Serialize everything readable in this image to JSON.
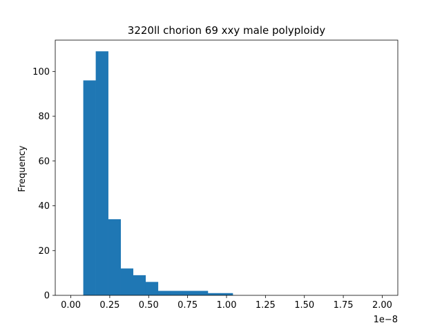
{
  "chart_data": {
    "type": "bar",
    "title": "3220ll chorion 69 xxy male polyploidy",
    "xlabel": "",
    "ylabel": "Frequency",
    "x_offset_label": "1e−8",
    "xlim": [
      -0.1,
      2.1
    ],
    "ylim": [
      0,
      114
    ],
    "bar_color": "#1f77b4",
    "x_ticks": [
      0.0,
      0.25,
      0.5,
      0.75,
      1.0,
      1.25,
      1.5,
      1.75,
      2.0
    ],
    "x_tick_labels": [
      "0.00",
      "0.25",
      "0.50",
      "0.75",
      "1.00",
      "1.25",
      "1.50",
      "1.75",
      "2.00"
    ],
    "y_ticks": [
      0,
      20,
      40,
      60,
      80,
      100
    ],
    "y_tick_labels": [
      "0",
      "20",
      "40",
      "60",
      "80",
      "100"
    ],
    "bins": [
      {
        "x0": 0.08,
        "x1": 0.16,
        "count": 96
      },
      {
        "x0": 0.16,
        "x1": 0.24,
        "count": 109
      },
      {
        "x0": 0.24,
        "x1": 0.32,
        "count": 34
      },
      {
        "x0": 0.32,
        "x1": 0.4,
        "count": 12
      },
      {
        "x0": 0.4,
        "x1": 0.48,
        "count": 9
      },
      {
        "x0": 0.48,
        "x1": 0.56,
        "count": 6
      },
      {
        "x0": 0.56,
        "x1": 0.64,
        "count": 2
      },
      {
        "x0": 0.64,
        "x1": 0.72,
        "count": 2
      },
      {
        "x0": 0.72,
        "x1": 0.8,
        "count": 2
      },
      {
        "x0": 0.8,
        "x1": 0.88,
        "count": 2
      },
      {
        "x0": 0.88,
        "x1": 0.96,
        "count": 1
      },
      {
        "x0": 0.96,
        "x1": 1.04,
        "count": 1
      }
    ]
  }
}
